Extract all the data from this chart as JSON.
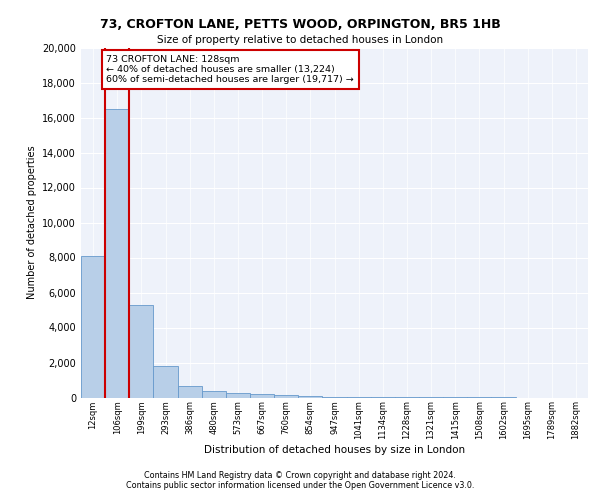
{
  "title_line1": "73, CROFTON LANE, PETTS WOOD, ORPINGTON, BR5 1HB",
  "title_line2": "Size of property relative to detached houses in London",
  "xlabel": "Distribution of detached houses by size in London",
  "ylabel": "Number of detached properties",
  "bin_labels": [
    "12sqm",
    "106sqm",
    "199sqm",
    "293sqm",
    "386sqm",
    "480sqm",
    "573sqm",
    "667sqm",
    "760sqm",
    "854sqm",
    "947sqm",
    "1041sqm",
    "1134sqm",
    "1228sqm",
    "1321sqm",
    "1415sqm",
    "1508sqm",
    "1602sqm",
    "1695sqm",
    "1789sqm",
    "1882sqm"
  ],
  "bar_values": [
    8100,
    16500,
    5300,
    1800,
    650,
    350,
    250,
    200,
    150,
    80,
    30,
    10,
    5,
    3,
    2,
    1,
    1,
    1,
    0,
    0,
    0
  ],
  "bar_color": "#b8cfe8",
  "bar_edge_color": "#6699cc",
  "annotation_text_line1": "73 CROFTON LANE: 128sqm",
  "annotation_text_line2": "← 40% of detached houses are smaller (13,224)",
  "annotation_text_line3": "60% of semi-detached houses are larger (19,717) →",
  "annotation_box_color": "#ffffff",
  "annotation_box_edge_color": "#cc0000",
  "prop_bin": 1,
  "ylim": [
    0,
    20000
  ],
  "yticks": [
    0,
    2000,
    4000,
    6000,
    8000,
    10000,
    12000,
    14000,
    16000,
    18000,
    20000
  ],
  "footer_line1": "Contains HM Land Registry data © Crown copyright and database right 2024.",
  "footer_line2": "Contains public sector information licensed under the Open Government Licence v3.0.",
  "plot_bg_color": "#eef2fa"
}
